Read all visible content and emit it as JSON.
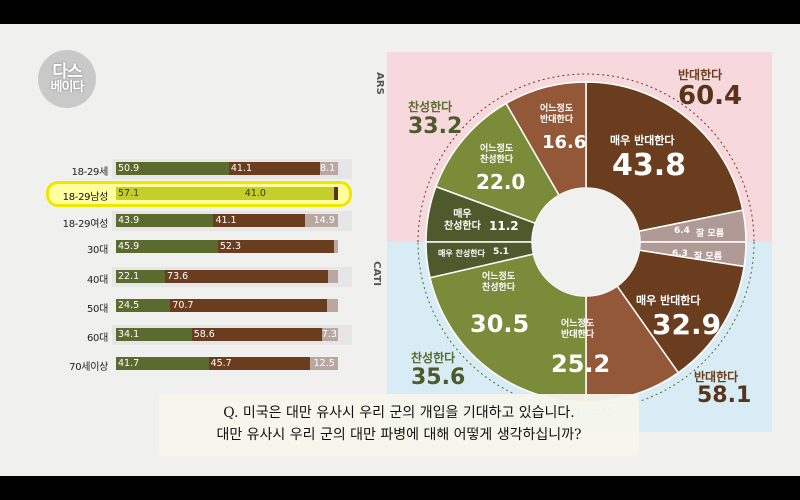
{
  "watermark": "",
  "logo": {
    "line1": "다스",
    "line2": "베이다"
  },
  "chart_data": [
    {
      "type": "bar",
      "stacked": true,
      "categories": [
        "18-29세",
        "18-29남성",
        "18-29여성",
        "30대",
        "40대",
        "50대",
        "60대",
        "70세이상"
      ],
      "highlighted_category": "18-29남성",
      "series": [
        {
          "values": [
            50.9,
            57.1,
            43.9,
            45.9,
            22.1,
            24.5,
            34.1,
            41.7
          ],
          "color": "#5b6a2f"
        },
        {
          "values": [
            41.1,
            41.0,
            41.1,
            52.3,
            73.6,
            70.7,
            58.6,
            45.7
          ],
          "color": "#6b3d1f"
        },
        {
          "values": [
            8.1,
            1.9,
            14.9,
            1.8,
            4.3,
            4.8,
            7.3,
            12.5
          ],
          "color": "#b9a7a2"
        }
      ],
      "value_labels": [
        [
          "50.9",
          "41.1",
          "8.1"
        ],
        [
          "57.1",
          "41.0",
          ""
        ],
        [
          "43.9",
          "41.1",
          "14.9"
        ],
        [
          "45.9",
          "52.3",
          ""
        ],
        [
          "22.1",
          "73.6",
          ""
        ],
        [
          "24.5",
          "70.7",
          ""
        ],
        [
          "34.1",
          "58.6",
          "7.3"
        ],
        [
          "41.7",
          "45.7",
          "12.5"
        ]
      ]
    },
    {
      "type": "pie",
      "donut": true,
      "panels": [
        {
          "name": "ARS",
          "slices": [
            {
              "label": "매우 반대한다",
              "value": 43.8,
              "color": "#6b3d1f"
            },
            {
              "label": "잘 모름",
              "value": 6.4,
              "color": "#b09a96"
            },
            {
              "label": "매우 찬성한다",
              "value": 11.2,
              "color": "#4f5a2c"
            },
            {
              "label": "어느정도 찬성한다",
              "value": 22.0,
              "color": "#7a8c3a"
            },
            {
              "label": "어느정도 반대한다",
              "value": 16.6,
              "color": "#935838"
            }
          ],
          "totals": [
            {
              "label": "반대한다",
              "value": "60.4"
            },
            {
              "label": "찬성한다",
              "value": "33.2"
            }
          ]
        },
        {
          "name": "CATI",
          "slices": [
            {
              "label": "잘 모름",
              "value": 6.3,
              "color": "#b09a96"
            },
            {
              "label": "매우 반대한다",
              "value": 32.9,
              "color": "#6b3d1f"
            },
            {
              "label": "어느정도 반대한다",
              "value": 25.2,
              "color": "#935838"
            },
            {
              "label": "어느정도 찬성한다",
              "value": 30.5,
              "color": "#7a8c3a"
            },
            {
              "label": "매우 찬성한다",
              "value": 5.1,
              "color": "#4f5a2c"
            }
          ],
          "totals": [
            {
              "label": "반대한다",
              "value": "58.1"
            },
            {
              "label": "찬성한다",
              "value": "35.6"
            }
          ]
        }
      ]
    }
  ],
  "text": {
    "ars_tag": "ARS",
    "cati_tag": "CATI",
    "oppose": "반대한다",
    "support": "찬성한다",
    "ars_oppose_total": "60.4",
    "ars_support_total": "33.2",
    "cati_oppose_total": "58.1",
    "cati_support_total": "35.6",
    "very_oppose": "매우 반대한다",
    "somewhat_oppose_2line_a": "어느정도",
    "somewhat_oppose_2line_b": "반대한다",
    "somewhat_support_2line_a": "어느정도",
    "somewhat_support_2line_b": "찬성한다",
    "very_support_2line_a": "매우",
    "very_support_2line_b": "찬성한다",
    "very_support_inline": "매우 찬성한다",
    "dont_know": "잘 모름",
    "ars_very_oppose": "43.8",
    "ars_dont_know": "6.4",
    "ars_very_support": "11.2",
    "ars_somewhat_support": "22.0",
    "ars_somewhat_oppose": "16.6",
    "cati_dont_know": "6.3",
    "cati_very_oppose": "32.9",
    "cati_somewhat_oppose": "25.2",
    "cati_somewhat_support": "30.5",
    "cati_very_support": "5.1"
  },
  "caption": {
    "line1": "Q.  미국은 대만 유사시 우리 군의 개입을 기대하고 있습니다.",
    "line2": "대만 유사시 우리 군의 대만 파병에 대해 어떻게 생각하십니까?"
  }
}
